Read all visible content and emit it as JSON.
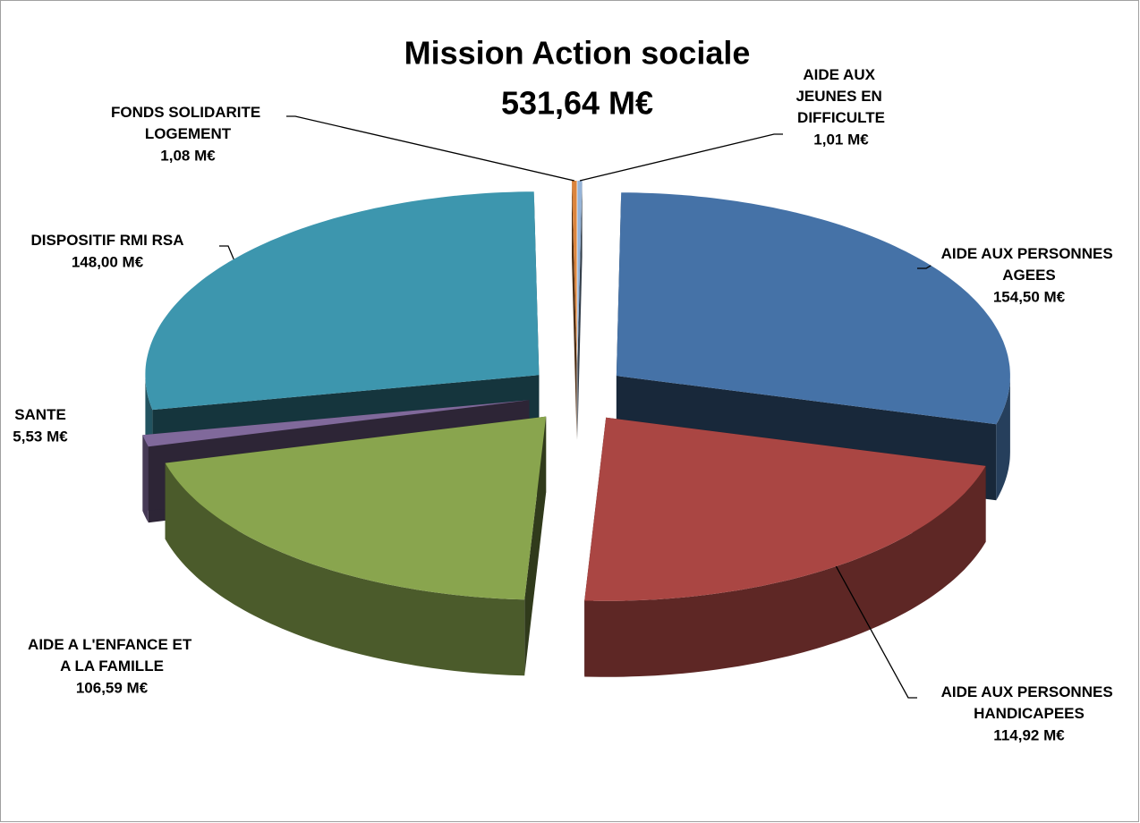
{
  "chart_data": {
    "type": "pie",
    "title": "Mission Action sociale",
    "subtitle": "531,64 M€",
    "categories": [
      "AIDE AUX JEUNES EN DIFFICULTE",
      "AIDE AUX PERSONNES AGEES",
      "AIDE AUX PERSONNES HANDICAPEES",
      "AIDE A L'ENFANCE ET A LA FAMILLE",
      "SANTE",
      "DISPOSITIF RMI RSA",
      "FONDS SOLIDARITE LOGEMENT"
    ],
    "values": [
      1.01,
      154.5,
      114.92,
      106.59,
      5.53,
      148.0,
      1.08
    ],
    "value_labels": [
      "1,01 M€",
      "154,50 M€",
      "114,92 M€",
      "106,59 M€",
      "5,53 M€",
      "148,00 M€",
      "1,08 M€"
    ],
    "colors": [
      "#95b3d7",
      "#4572a7",
      "#aa4643",
      "#89a54e",
      "#80699b",
      "#3d96ae",
      "#db843d"
    ]
  }
}
